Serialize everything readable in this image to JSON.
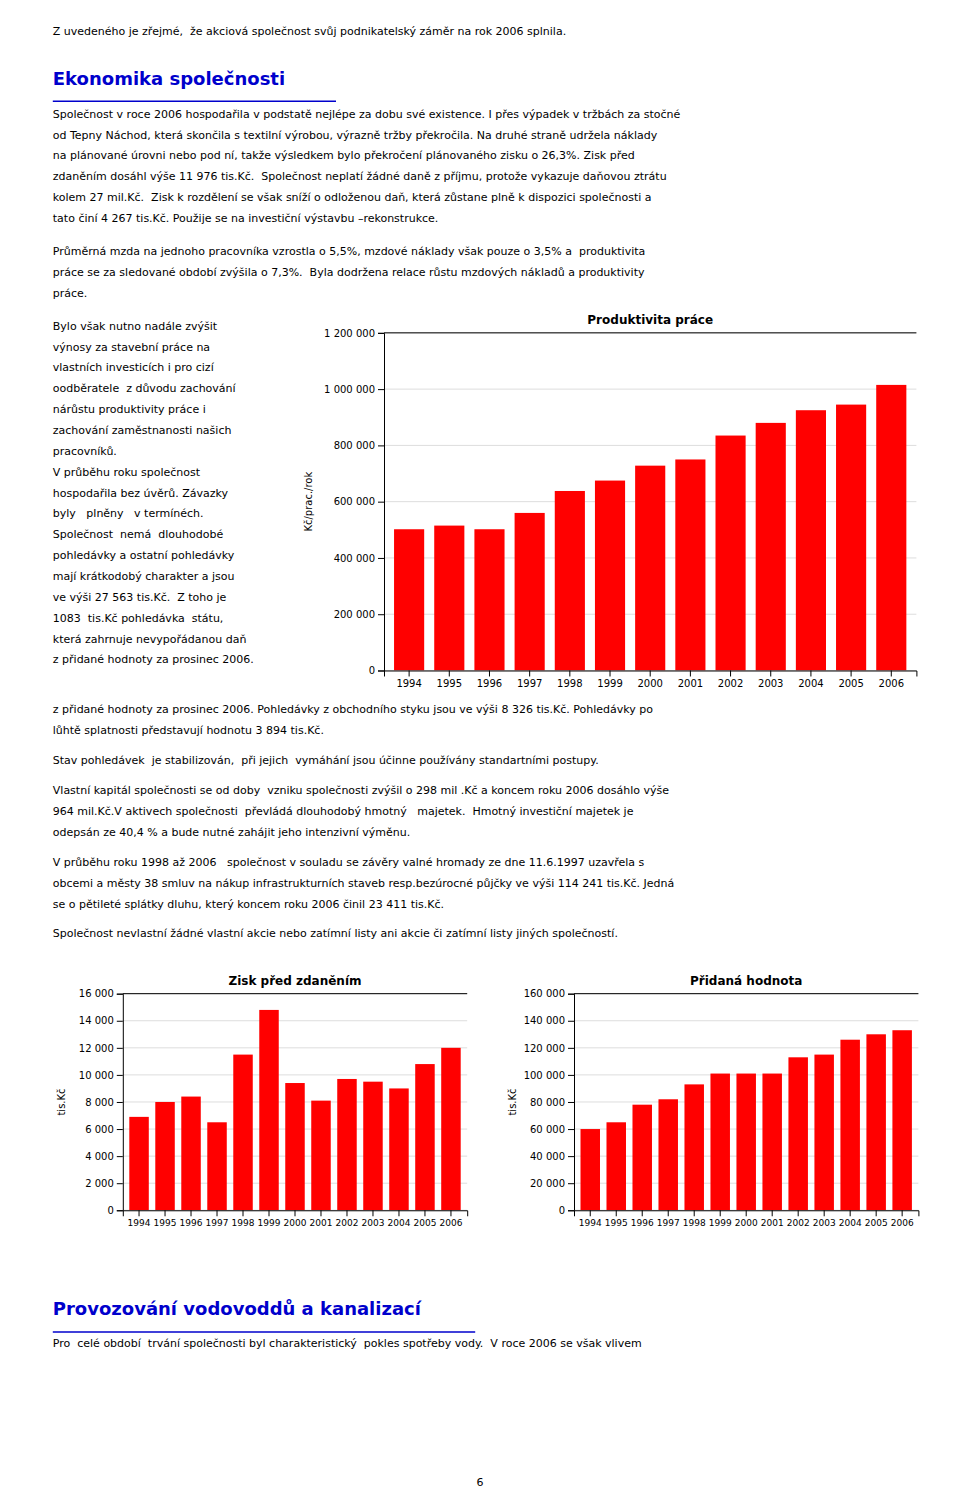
{
  "page": {
    "background_color": "#ffffff",
    "text_color": "#000000",
    "section_color": "#0000CC",
    "top_line": "Z uvedeného je zřejmé,  že akciová společnost svůj podnikatelský záměr na rok 2006 splnila.",
    "section_title": "Ekonomika společnosti",
    "paragraph_1": [
      "Společnost v roce 2006 hospodařila v podstatě nejlépe za dobu své existence. I přes výpadek v tržbách za stočné",
      "od Tepny Náchod, která skončila s textilní výrobou, výrazně tržby překročila. Na druhé straně udržela náklady",
      "na plánované úrovni nebo pod ní, takže výsledkem bylo překročení plánovaného zisku o 26,3%. Zisk před",
      "zdaněním dosáhl výše 11 976 tis.Kč.  Společnost neplatí žádné daně z příjmu, protože vykazuje daňovou ztrátu",
      "kolem 27 mil.Kč.  Zisk k rozdělení se však sníží o odloženou daň, která zůstane plně k dispozici společnosti a",
      "tato činí 4 267 tis.Kč. Použije se na investiční výstavbu –rekonstrukce."
    ],
    "paragraph_2": [
      "Průměrná mzda na jednoho pracovníka vzrostla o 5,5%, mzdové náklady však pouze o 3,5% a  produktivita",
      "práce se za sledované období zvýšila o 7,3%.  Byla dodržena relace růstu mzdových nákladů a produktivity",
      "práce."
    ],
    "left_column": [
      "Bylo však nutno nadále zvýšit",
      "výnosy za stavební práce na",
      "vlastních investicích i pro cizí",
      "oodběratele  z důvodu zachování",
      "nárůstu produktivity práce i",
      "zachování zaměstnanosti našich",
      "pracovníků.",
      "V průběhu roku společnost",
      "hospodařila bez úvěrů. Závazky",
      "byly   plněny   v termínéch.",
      "Společnost  nemá  dlouhodobé",
      "pohledávky a ostatní pohledávky",
      "mají krátkodobý charakter a jsou",
      "ve výši 27 563 tis.Kč.  Z toho je",
      "1083  tis.Kč pohledávka  státu,",
      "která zahrnuje nevypořádanou daň",
      "z přidané hodnoty za prosinec 2006."
    ],
    "paragraphs_below": [
      [
        "z přidané hodnoty za prosinec 2006. Pohledávky z obchodního styku jsou ve výši 8 326 tis.Kč. Pohledávky po",
        "lůhtě splatnosti představují hodnotu 3 894 tis.Kč."
      ],
      [
        "Stav pohledávek  je stabilizován,  při jejich  vymáhání jsou účinne používány standartními postupy."
      ],
      [
        "Vlastní kapitál společnosti se od doby  vzniku společnosti zvýšil o 298 mil .Kč a koncem roku 2006 dosáhlo výše",
        "964 mil.Kč.V aktivech společnosti  převládá dlouhodobý hmotný   majetek.  Hmotný investiční majetek je",
        "odepsán ze 40,4 % a bude nutné zahájit jeho intenzivní výměnu."
      ],
      [
        "V průběhu roku 1998 až 2006   společnost v souladu se závěry valné hromady ze dne 11.6.1997 uzavřela s",
        "obcemi a městy 38 smluv na nákup infrastrukturních staveb resp.bezúrocné půjčky ve výši 114 241 tis.Kč. Jedná",
        "se o pětileté splátky dluhu, který koncem roku 2006 činil 23 411 tis.Kč."
      ],
      [
        "Společnost nevlastní žádné vlastní akcie nebo zatímní listy ani akcie či zatímní listy jiných společností."
      ]
    ],
    "section_2_title": "Provozování vodovoddů a kanalizací",
    "section_2_text": "Pro  celé období  trvání společnosti byl charakteristický  pokles spotřeby vody.  V roce 2006 se však vlivem",
    "page_number": "6"
  },
  "chart_data": [
    {
      "type": "bar",
      "title": "Produktivita práce",
      "ylabel": "Kč/prac./rok",
      "categories": [
        "1994",
        "1995",
        "1996",
        "1997",
        "1998",
        "1999",
        "2000",
        "2001",
        "2002",
        "2003",
        "2004",
        "2005",
        "2006"
      ],
      "values": [
        502000,
        515000,
        502000,
        560000,
        638000,
        675000,
        728000,
        750000,
        835000,
        880000,
        925000,
        945000,
        1015000
      ],
      "color": "#FF0000",
      "ylim": [
        0,
        1200000
      ],
      "yticks": [
        0,
        {
          "value": 200000,
          "label": "200 000"
        },
        {
          "value": 400000,
          "label": "400 000"
        },
        {
          "value": 600000,
          "label": "600 000"
        },
        {
          "value": 800000,
          "label": "800 000"
        },
        {
          "value": 1000000,
          "label": "1 000 000"
        },
        {
          "value": 1200000,
          "label": "1 200 000"
        }
      ],
      "grid": true
    },
    {
      "type": "bar",
      "title": "Zisk před zdaněním",
      "ylabel": "tis.Kč",
      "categories": [
        "1994",
        "1995",
        "1996",
        "1997",
        "1998",
        "1999",
        "2000",
        "2001",
        "2002",
        "2003",
        "2004",
        "2005",
        "2006"
      ],
      "values": [
        6900,
        8000,
        8400,
        6500,
        11500,
        14800,
        9400,
        8100,
        9700,
        9500,
        9000,
        10800,
        12000
      ],
      "color": "#FF0000",
      "ylim": [
        0,
        16000
      ],
      "yticks": [
        0,
        {
          "value": 2000,
          "label": "2 000"
        },
        {
          "value": 4000,
          "label": "4 000"
        },
        {
          "value": 6000,
          "label": "6 000"
        },
        {
          "value": 8000,
          "label": "8 000"
        },
        {
          "value": 10000,
          "label": "10 000"
        },
        {
          "value": 12000,
          "label": "12 000"
        },
        {
          "value": 14000,
          "label": "14 000"
        },
        {
          "value": 16000,
          "label": "16 000"
        }
      ],
      "grid": true
    },
    {
      "type": "bar",
      "title": "Přidaná hodnota",
      "ylabel": "tis.Kč",
      "categories": [
        "1994",
        "1995",
        "1996",
        "1997",
        "1998",
        "1999",
        "2000",
        "2001",
        "2002",
        "2003",
        "2004",
        "2005",
        "2006"
      ],
      "values": [
        60000,
        65000,
        78000,
        82000,
        93000,
        101000,
        101000,
        101000,
        113000,
        115000,
        126000,
        130000,
        133000
      ],
      "color": "#FF0000",
      "ylim": [
        0,
        160000
      ],
      "yticks": [
        0,
        {
          "value": 20000,
          "label": "20 000"
        },
        {
          "value": 40000,
          "label": "40 000"
        },
        {
          "value": 60000,
          "label": "60 000"
        },
        {
          "value": 80000,
          "label": "80 000"
        },
        {
          "value": 100000,
          "label": "100 000"
        },
        {
          "value": 120000,
          "label": "120 000"
        },
        {
          "value": 140000,
          "label": "140 000"
        },
        {
          "value": 160000,
          "label": "160 000"
        }
      ],
      "grid": true
    }
  ]
}
